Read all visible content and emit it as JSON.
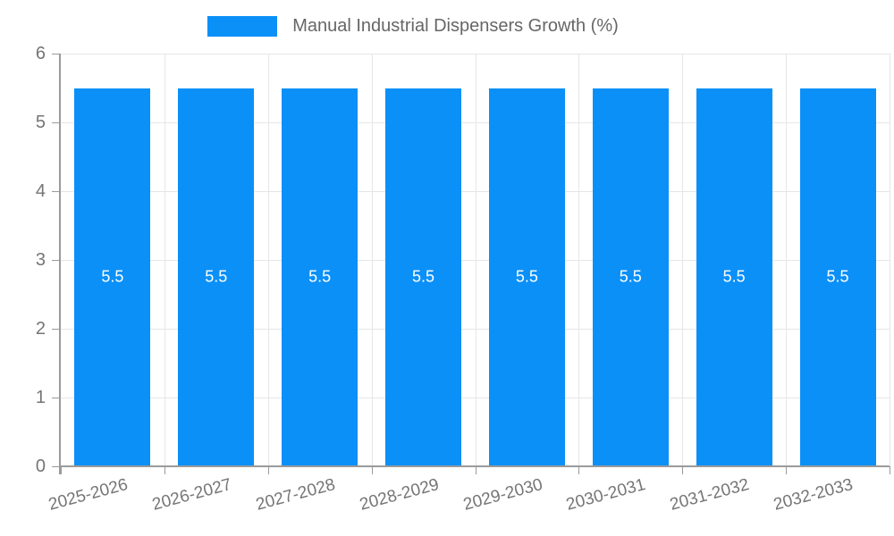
{
  "legend": {
    "label": "Manual Industrial Dispensers Growth (%)"
  },
  "chart_data": {
    "type": "bar",
    "title": "Manual Industrial Dispensers Growth (%)",
    "xlabel": "",
    "ylabel": "",
    "categories": [
      "2025-2026",
      "2026-2027",
      "2027-2028",
      "2028-2029",
      "2029-2030",
      "2030-2031",
      "2031-2032",
      "2032-2033"
    ],
    "values": [
      5.5,
      5.5,
      5.5,
      5.5,
      5.5,
      5.5,
      5.5,
      5.5
    ],
    "ylim": [
      0,
      6
    ],
    "ytick_step": 1,
    "grid": true,
    "legend_position": "top-center",
    "colors": {
      "bar": "#0b90f8",
      "grid": "#e6e6e6",
      "axis": "#9a9a9a",
      "tick_text": "#757575",
      "legend_text": "#666666",
      "bar_label": "#ffffff",
      "background": "#ffffff"
    }
  }
}
